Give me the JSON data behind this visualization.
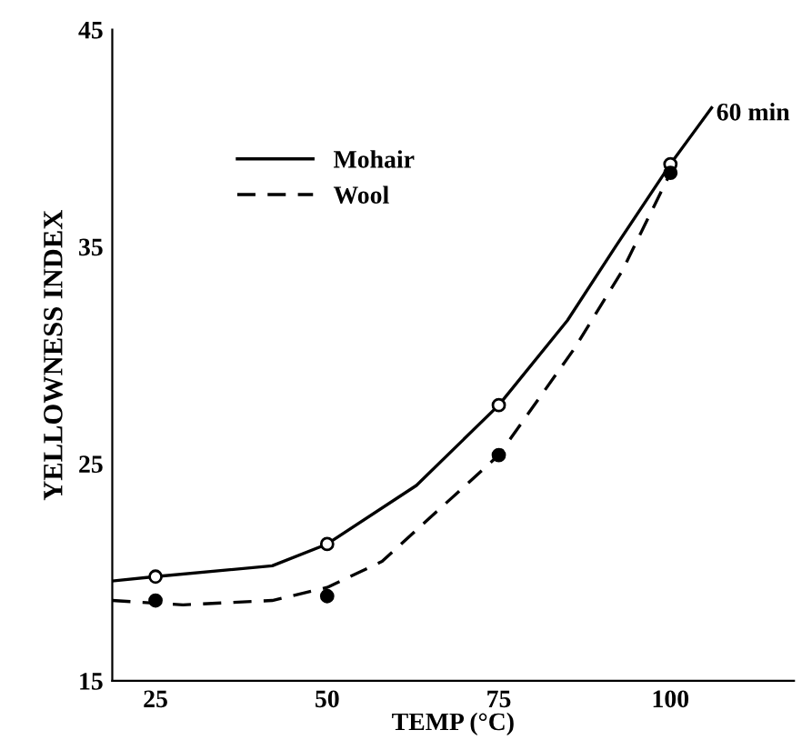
{
  "chart_data": {
    "type": "line",
    "xlabel": "TEMP (°C)",
    "ylabel": "YELLOWNESS INDEX",
    "xlim": [
      18.7,
      118
    ],
    "ylim": [
      15,
      45
    ],
    "xticks": [
      25,
      50,
      75,
      100
    ],
    "yticks": [
      15,
      25,
      35,
      45
    ],
    "grid": false,
    "legend": "top left",
    "annotations": [
      "60 min"
    ],
    "series": [
      {
        "name": "Mohair",
        "line_style": "solid",
        "color": "#000000",
        "x": [
          18.7,
          25,
          42,
          50,
          63,
          75,
          85,
          92,
          100,
          106
        ],
        "values": [
          19.6,
          19.8,
          20.3,
          21.3,
          24.0,
          27.7,
          31.6,
          35.0,
          38.8,
          41.4
        ]
      },
      {
        "name": "Wool",
        "line_style": "dashed",
        "color": "#000000",
        "x": [
          18.7,
          29,
          42,
          50,
          58,
          75,
          86,
          93,
          100
        ],
        "values": [
          18.7,
          18.5,
          18.7,
          19.3,
          20.5,
          25.4,
          30.3,
          33.9,
          38.4
        ]
      },
      {
        "type": "scatter",
        "marker": "circle",
        "color": "#ffffff",
        "x": [
          25,
          50,
          75,
          100
        ],
        "values": [
          19.8,
          21.3,
          27.7,
          38.8
        ]
      },
      {
        "type": "scatter",
        "marker": "circle",
        "color": "#000000",
        "x": [
          25,
          50,
          75,
          100
        ],
        "values": [
          18.7,
          18.9,
          25.4,
          38.4
        ]
      }
    ]
  }
}
